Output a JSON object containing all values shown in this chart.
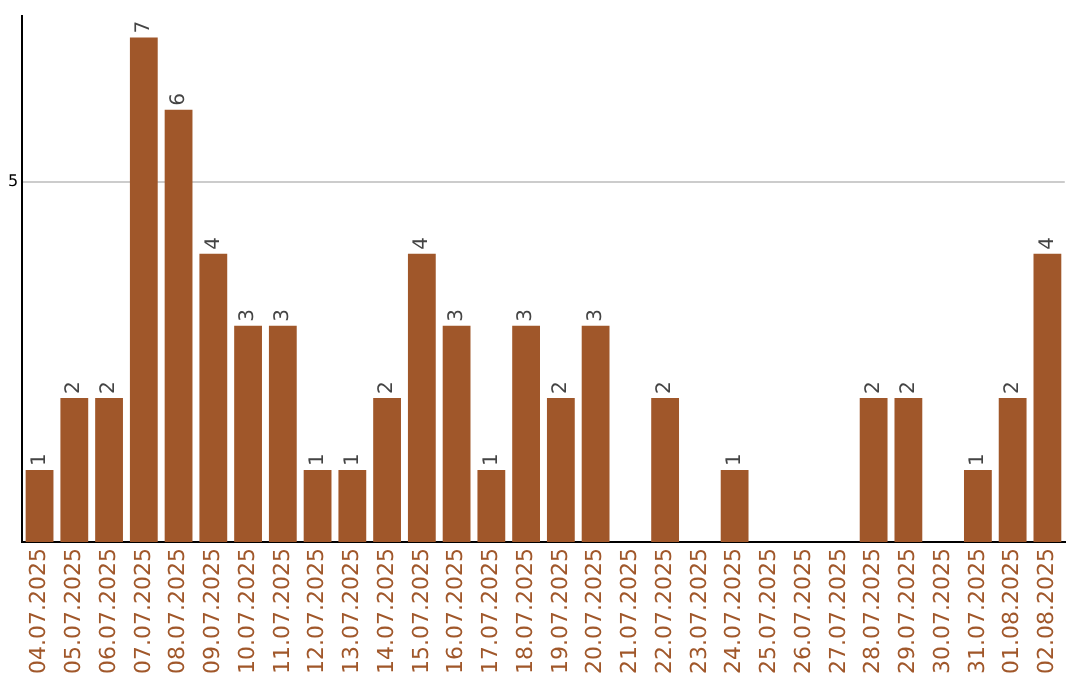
{
  "chart_data": {
    "type": "bar",
    "categories": [
      "04.07.2025",
      "05.07.2025",
      "06.07.2025",
      "07.07.2025",
      "08.07.2025",
      "09.07.2025",
      "10.07.2025",
      "11.07.2025",
      "12.07.2025",
      "13.07.2025",
      "14.07.2025",
      "15.07.2025",
      "16.07.2025",
      "17.07.2025",
      "18.07.2025",
      "19.07.2025",
      "20.07.2025",
      "21.07.2025",
      "22.07.2025",
      "23.07.2025",
      "24.07.2025",
      "25.07.2025",
      "26.07.2025",
      "27.07.2025",
      "28.07.2025",
      "29.07.2025",
      "30.07.2025",
      "31.07.2025",
      "01.08.2025",
      "02.08.2025"
    ],
    "values": [
      1,
      2,
      2,
      7,
      6,
      4,
      3,
      3,
      1,
      1,
      2,
      4,
      3,
      1,
      3,
      2,
      3,
      0,
      2,
      0,
      1,
      0,
      0,
      0,
      2,
      2,
      0,
      1,
      2,
      4
    ],
    "value_labels": [
      "1",
      "2",
      "2",
      "7",
      "6",
      "4",
      "3",
      "3",
      "1",
      "1",
      "2",
      "4",
      "3",
      "1",
      "3",
      "2",
      "3",
      null,
      "2",
      null,
      "1",
      null,
      null,
      null,
      "2",
      "2",
      null,
      "1",
      "2",
      "4"
    ],
    "color": "#a0572a",
    "ylim": [
      0,
      7.3
    ],
    "yticks": [
      5
    ],
    "grid": "y",
    "legend": false
  }
}
